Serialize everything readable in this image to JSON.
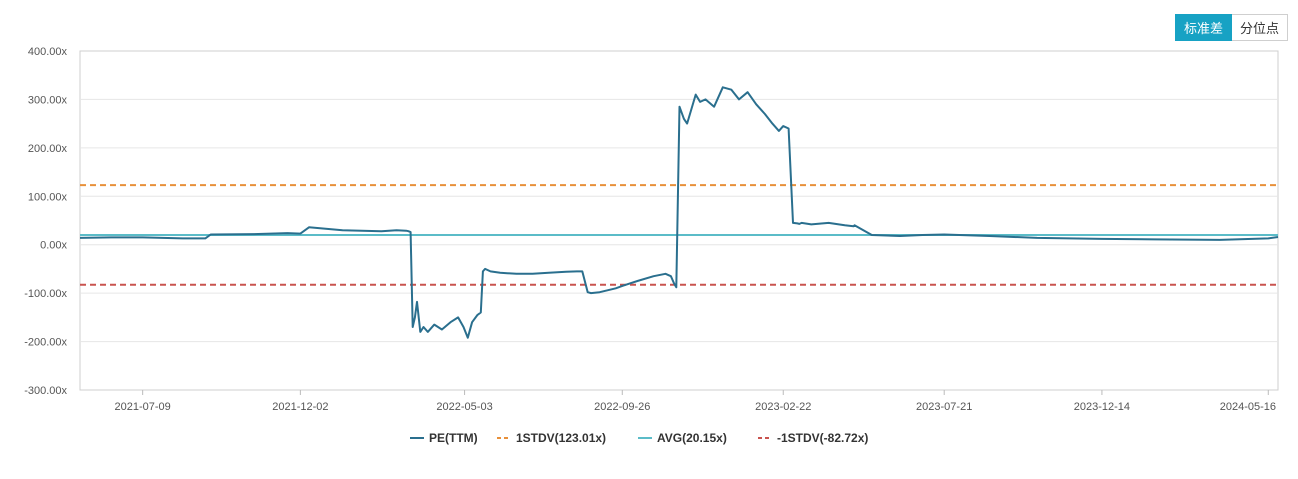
{
  "toggle": {
    "std_label": "标准差",
    "pct_label": "分位点"
  },
  "colors": {
    "pe": "#2a6f8e",
    "plus1": "#e8903a",
    "avg": "#5bbcc8",
    "minus1": "#c9534f"
  },
  "chart_data": {
    "type": "line",
    "ylim": [
      -300,
      400
    ],
    "yticks": [
      "-300.00x",
      "-200.00x",
      "-100.00x",
      "0.00x",
      "100.00x",
      "200.00x",
      "300.00x",
      "400.00x"
    ],
    "ytick_values": [
      -300,
      -200,
      -100,
      0,
      100,
      200,
      300,
      400
    ],
    "xlim": [
      "2021-05-12",
      "2024-05-25"
    ],
    "xticks": [
      "2021-07-09",
      "2021-12-02",
      "2022-05-03",
      "2022-09-26",
      "2023-02-22",
      "2023-07-21",
      "2023-12-14",
      "2024-05-16"
    ],
    "reference_lines": [
      {
        "name": "1STDV(123.01x)",
        "value": 123.01,
        "style": "dashed",
        "color": "#e8903a"
      },
      {
        "name": "AVG(20.15x)",
        "value": 20.15,
        "style": "solid",
        "color": "#5bbcc8"
      },
      {
        "name": "-1STDV(-82.72x)",
        "value": -82.72,
        "style": "dashed",
        "color": "#c9534f"
      }
    ],
    "series": [
      {
        "name": "PE(TTM)",
        "color": "#2a6f8e",
        "x": [
          "2021-05-12",
          "2021-06-10",
          "2021-07-09",
          "2021-08-15",
          "2021-09-05",
          "2021-09-10",
          "2021-10-20",
          "2021-11-20",
          "2021-12-02",
          "2021-12-10",
          "2022-01-10",
          "2022-02-15",
          "2022-03-01",
          "2022-03-10",
          "2022-03-12",
          "2022-03-14",
          "2022-03-16",
          "2022-03-18",
          "2022-03-20",
          "2022-03-23",
          "2022-03-26",
          "2022-03-30",
          "2022-04-05",
          "2022-04-12",
          "2022-04-20",
          "2022-04-27",
          "2022-05-02",
          "2022-05-06",
          "2022-05-10",
          "2022-05-15",
          "2022-05-18",
          "2022-05-20",
          "2022-05-22",
          "2022-05-27",
          "2022-06-05",
          "2022-06-20",
          "2022-07-05",
          "2022-07-20",
          "2022-08-05",
          "2022-08-15",
          "2022-08-20",
          "2022-08-25",
          "2022-08-28",
          "2022-09-05",
          "2022-09-20",
          "2022-09-26",
          "2022-10-10",
          "2022-10-25",
          "2022-11-05",
          "2022-11-10",
          "2022-11-13",
          "2022-11-15",
          "2022-11-18",
          "2022-11-22",
          "2022-11-25",
          "2022-12-03",
          "2022-12-07",
          "2022-12-12",
          "2022-12-20",
          "2022-12-28",
          "2023-01-05",
          "2023-01-12",
          "2023-01-20",
          "2023-01-28",
          "2023-02-05",
          "2023-02-12",
          "2023-02-18",
          "2023-02-22",
          "2023-02-27",
          "2023-03-03",
          "2023-03-07",
          "2023-03-09",
          "2023-03-11",
          "2023-03-20",
          "2023-04-05",
          "2023-04-20",
          "2023-04-28",
          "2023-04-29",
          "2023-05-15",
          "2023-06-10",
          "2023-07-01",
          "2023-07-21",
          "2023-09-01",
          "2023-10-15",
          "2023-12-14",
          "2024-02-01",
          "2024-04-01",
          "2024-05-16",
          "2024-05-25"
        ],
        "values": [
          14,
          15,
          15,
          13,
          13,
          21,
          22,
          24,
          23,
          36,
          30,
          28,
          30,
          29,
          28,
          26,
          -170,
          -150,
          -118,
          -180,
          -170,
          -180,
          -165,
          -175,
          -160,
          -150,
          -170,
          -192,
          -160,
          -145,
          -140,
          -55,
          -50,
          -55,
          -58,
          -60,
          -60,
          -58,
          -56,
          -55,
          -55,
          -98,
          -100,
          -98,
          -90,
          -85,
          -75,
          -65,
          -60,
          -65,
          -80,
          -88,
          285,
          260,
          250,
          310,
          295,
          300,
          285,
          325,
          320,
          300,
          315,
          290,
          270,
          250,
          235,
          245,
          240,
          45,
          44,
          43,
          45,
          42,
          45,
          40,
          38,
          40,
          20,
          18,
          20,
          21,
          18,
          14,
          12,
          11,
          10,
          13,
          16
        ]
      }
    ]
  },
  "legend": [
    {
      "label": "PE(TTM)"
    },
    {
      "label": "1STDV(123.01x)"
    },
    {
      "label": "AVG(20.15x)"
    },
    {
      "label": "-1STDV(-82.72x)"
    }
  ]
}
